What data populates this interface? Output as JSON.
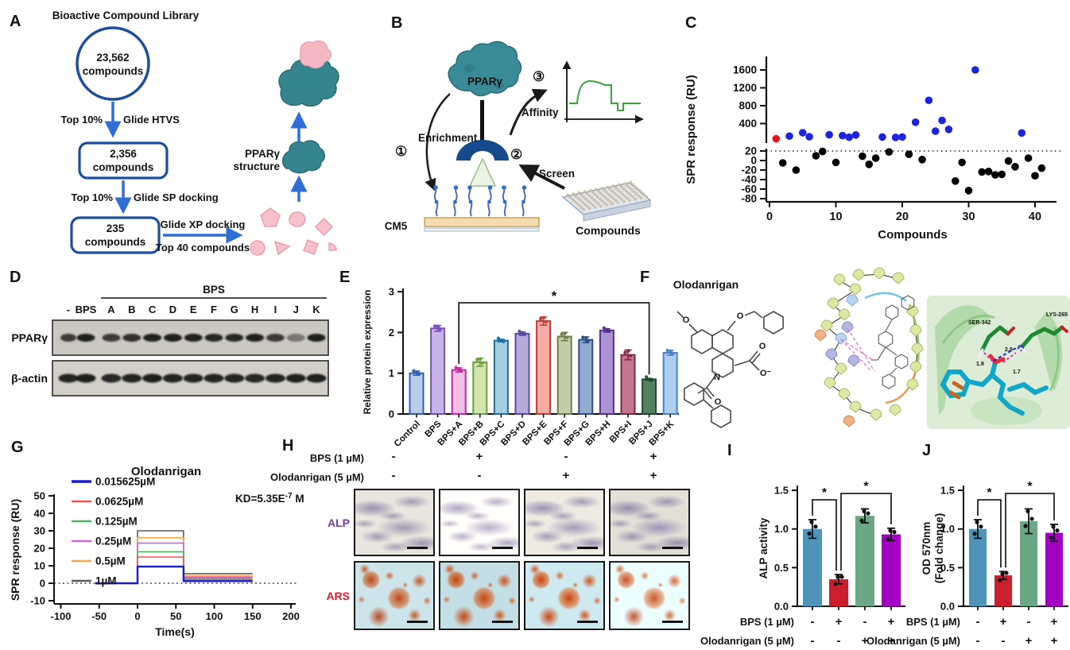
{
  "panel_a": {
    "label": "A",
    "title": "Bioactive Compound Library",
    "circle": {
      "line1": "23,562",
      "line2": "compounds"
    },
    "step1": {
      "left": "Top 10%",
      "right": "Glide HTVS"
    },
    "box1": {
      "line1": "2,356",
      "line2": "compounds"
    },
    "step2": {
      "left": "Top 10%",
      "right": "Glide SP docking"
    },
    "box2": {
      "line1": "235",
      "line2": "compounds"
    },
    "step3": {
      "top": "Glide XP docking",
      "bottom": "Top 40 compounds"
    },
    "structure": {
      "line1": "PPARγ",
      "line2": "structure"
    },
    "colors": {
      "outline": "#1d4e9e",
      "arrow": "#2e6ed6",
      "teal": "#35858f",
      "pink": "#f8c0cb"
    }
  },
  "panel_b": {
    "label": "B",
    "ppar": "PPARγ",
    "step1": "①",
    "step2": "②",
    "step3": "③",
    "enrichment": "Enrichment",
    "affinity": "Affinity",
    "screen": "Screen",
    "cm5": "CM5",
    "compounds": "Compounds",
    "colors": {
      "teal": "#3a8b98",
      "dark_blue": "#17498d",
      "green_curve": "#3aa53a"
    }
  },
  "panel_c": {
    "label": "C",
    "chart_data": {
      "type": "scatter",
      "xlabel": "Compounds",
      "ylabel": "SPR response (RU)",
      "x_ticks": [
        0,
        10,
        20,
        30,
        40
      ],
      "y_ticks_upper": [
        400,
        800,
        1200,
        1600
      ],
      "y_ticks_lower": [
        20,
        0,
        -20,
        -40,
        -60,
        -80
      ],
      "threshold_line": 20,
      "broken_axis": true,
      "series": [
        {
          "name": "reference",
          "color": "#e8151b",
          "points": [
            [
              1,
              60
            ]
          ]
        },
        {
          "name": "binders",
          "color": "#1c24e0",
          "points": [
            [
              3,
              120
            ],
            [
              5,
              195
            ],
            [
              6,
              105
            ],
            [
              9,
              150
            ],
            [
              11,
              130
            ],
            [
              12,
              95
            ],
            [
              13,
              145
            ],
            [
              17,
              100
            ],
            [
              19,
              90
            ],
            [
              20,
              100
            ],
            [
              22,
              430
            ],
            [
              24,
              920
            ],
            [
              25,
              230
            ],
            [
              26,
              470
            ],
            [
              27,
              270
            ],
            [
              31,
              1600
            ],
            [
              38,
              190
            ]
          ]
        },
        {
          "name": "non_binders",
          "color": "#000000",
          "points": [
            [
              2,
              -5
            ],
            [
              4,
              -20
            ],
            [
              7,
              10
            ],
            [
              8,
              19
            ],
            [
              10,
              -4
            ],
            [
              14,
              9
            ],
            [
              15,
              -8
            ],
            [
              16,
              5
            ],
            [
              18,
              18
            ],
            [
              21,
              13
            ],
            [
              23,
              2
            ],
            [
              28,
              -43
            ],
            [
              29,
              -4
            ],
            [
              30,
              -63
            ],
            [
              32,
              -24
            ],
            [
              33,
              -23
            ],
            [
              34,
              -30
            ],
            [
              35,
              -29
            ],
            [
              36,
              -1
            ],
            [
              37,
              -13
            ],
            [
              39,
              5
            ],
            [
              40,
              -32
            ],
            [
              41,
              -16
            ]
          ]
        }
      ]
    }
  },
  "panel_d": {
    "label": "D",
    "group_label": "BPS",
    "lanes": [
      "-",
      "BPS",
      "A",
      "B",
      "C",
      "D",
      "E",
      "F",
      "G",
      "H",
      "I",
      "J",
      "K"
    ],
    "rows": [
      "PPARγ",
      "β-actin"
    ],
    "band_intensity_ppar": [
      0.78,
      0.95,
      0.8,
      0.85,
      0.95,
      0.95,
      0.95,
      0.9,
      0.9,
      0.95,
      0.8,
      0.45,
      0.95
    ],
    "band_intensity_actin": [
      0.92,
      0.95,
      0.9,
      0.92,
      0.95,
      0.93,
      0.92,
      0.93,
      0.92,
      0.9,
      0.93,
      0.95,
      0.95
    ]
  },
  "panel_e": {
    "label": "E",
    "chart_data": {
      "type": "bar",
      "ylabel": "Relative protein expression",
      "ylim": [
        0,
        3
      ],
      "yticks": [
        0,
        1,
        2,
        3
      ],
      "categories": [
        "Control",
        "BPS",
        "BPS+A",
        "BPS+B",
        "BPS+C",
        "BPS+D",
        "BPS+E",
        "BPS+F",
        "BPS+G",
        "BPS+H",
        "BPS+I",
        "BPS+J",
        "BPS+K"
      ],
      "values": [
        1.0,
        2.1,
        1.08,
        1.27,
        1.8,
        1.97,
        2.28,
        1.9,
        1.82,
        2.05,
        1.45,
        0.85,
        1.5
      ],
      "errors": [
        0.05,
        0.07,
        0.05,
        0.1,
        0.03,
        0.04,
        0.1,
        0.1,
        0.07,
        0.04,
        0.12,
        0.02,
        0.06
      ],
      "fill_colors": [
        "#b9cdea",
        "#c9b4e6",
        "#f7bfe6",
        "#d2e4b0",
        "#a6cde1",
        "#b6aada",
        "#f6aba4",
        "#c2cda9",
        "#93abd0",
        "#ab92d2",
        "#c4768f",
        "#53805f",
        "#b0cff0"
      ],
      "edge_colors": [
        "#2e5fae",
        "#7a4fb5",
        "#c02a9e",
        "#6f9e3d",
        "#1e6f9e",
        "#5c4aa0",
        "#c43b36",
        "#6e7f4a",
        "#2c4f87",
        "#5a2f8f",
        "#7e2746",
        "#1d4a2c",
        "#4a82c8"
      ],
      "significance": {
        "from": "BPS+A",
        "to": "BPS+J",
        "label": "*"
      }
    }
  },
  "panel_f": {
    "label": "F",
    "compound": "Olodanrigan",
    "atoms": {
      "o": "O",
      "n": "N",
      "o_minus": "O⁻"
    },
    "pose_labels": {
      "res1": "SER-342",
      "res2": "LYS-265",
      "d1": "1.9",
      "d2": "2.9",
      "d3": "1.7"
    }
  },
  "panel_g": {
    "label": "G",
    "title": "Olodanrigan",
    "kd": {
      "prefix": "KD=5.35E",
      "sup": "-7",
      "suffix": " M"
    },
    "chart_data": {
      "type": "line",
      "xlabel": "Time(s)",
      "ylabel": "SPR response (RU)",
      "x_ticks": [
        -100,
        -50,
        0,
        50,
        100,
        150,
        200
      ],
      "y_ticks": [
        -10,
        0,
        10,
        20,
        30,
        40,
        50
      ],
      "baseline_start": -55,
      "assoc_start": 0,
      "assoc_end": 60,
      "curve_end": 150,
      "series": [
        {
          "label": "0.015625µM",
          "color": "#1a1ad0",
          "plateau": 9.5,
          "dissociation": 1.2
        },
        {
          "label": "0.0625µM",
          "color": "#f05555",
          "plateau": 15,
          "dissociation": 2.0
        },
        {
          "label": "0.125µM",
          "color": "#4cb060",
          "plateau": 18,
          "dissociation": 2.8
        },
        {
          "label": "0.25µM",
          "color": "#cf66d6",
          "plateau": 23,
          "dissociation": 3.5
        },
        {
          "label": "0.5µM",
          "color": "#ffa54f",
          "plateau": 26,
          "dissociation": 4.3
        },
        {
          "label": "1µM",
          "color": "#5a5a5a",
          "plateau": 30,
          "dissociation": 5.5
        }
      ]
    }
  },
  "panel_h": {
    "label": "H",
    "row1_label": "BPS (1 µM)",
    "row2_label": "Olodanrigan (5 µM)",
    "row1_signs": [
      "-",
      "+",
      "-",
      "+"
    ],
    "row2_signs": [
      "-",
      "-",
      "+",
      "+"
    ],
    "stains": [
      {
        "name": "ALP",
        "color": "#7a3a9e"
      },
      {
        "name": "ARS",
        "color": "#d42030"
      }
    ]
  },
  "panel_i": {
    "label": "I",
    "chart_data": {
      "type": "bar",
      "ylabel_lines": [
        "ALP activity"
      ],
      "ylim": [
        0,
        1.5
      ],
      "yticks": [
        "0.0",
        "0.5",
        "1.0",
        "1.5"
      ],
      "values": [
        1.0,
        0.35,
        1.17,
        0.93
      ],
      "errors": [
        0.12,
        0.06,
        0.09,
        0.08
      ],
      "colors": [
        "#4e94b8",
        "#cc1f2e",
        "#6aa883",
        "#a400c4"
      ],
      "row1_label": "BPS (1 µM)",
      "row2_label": "Olodanrigan (5 µM)",
      "row1_signs": [
        "-",
        "+",
        "-",
        "+"
      ],
      "row2_signs": [
        "-",
        "-",
        "+",
        "+"
      ],
      "significance": [
        {
          "from": 0,
          "to": 1,
          "label": "*"
        },
        {
          "from": 1,
          "to": 3,
          "label": "*"
        }
      ]
    }
  },
  "panel_j": {
    "label": "J",
    "chart_data": {
      "type": "bar",
      "ylabel_lines": [
        "OD 570nm",
        "(Fold change)"
      ],
      "ylim": [
        0,
        1.5
      ],
      "yticks": [
        "0.0",
        "0.5",
        "1.0",
        "1.5"
      ],
      "values": [
        1.0,
        0.4,
        1.1,
        0.95
      ],
      "errors": [
        0.12,
        0.05,
        0.16,
        0.11
      ],
      "colors": [
        "#4e94b8",
        "#cc1f2e",
        "#6aa883",
        "#a400c4"
      ],
      "row1_label": "BPS (1 µM)",
      "row2_label": "Olodanrigan (5 µM)",
      "row1_signs": [
        "-",
        "+",
        "-",
        "+"
      ],
      "row2_signs": [
        "-",
        "-",
        "+",
        "+"
      ],
      "significance": [
        {
          "from": 0,
          "to": 1,
          "label": "*"
        },
        {
          "from": 1,
          "to": 3,
          "label": "*"
        }
      ]
    }
  }
}
